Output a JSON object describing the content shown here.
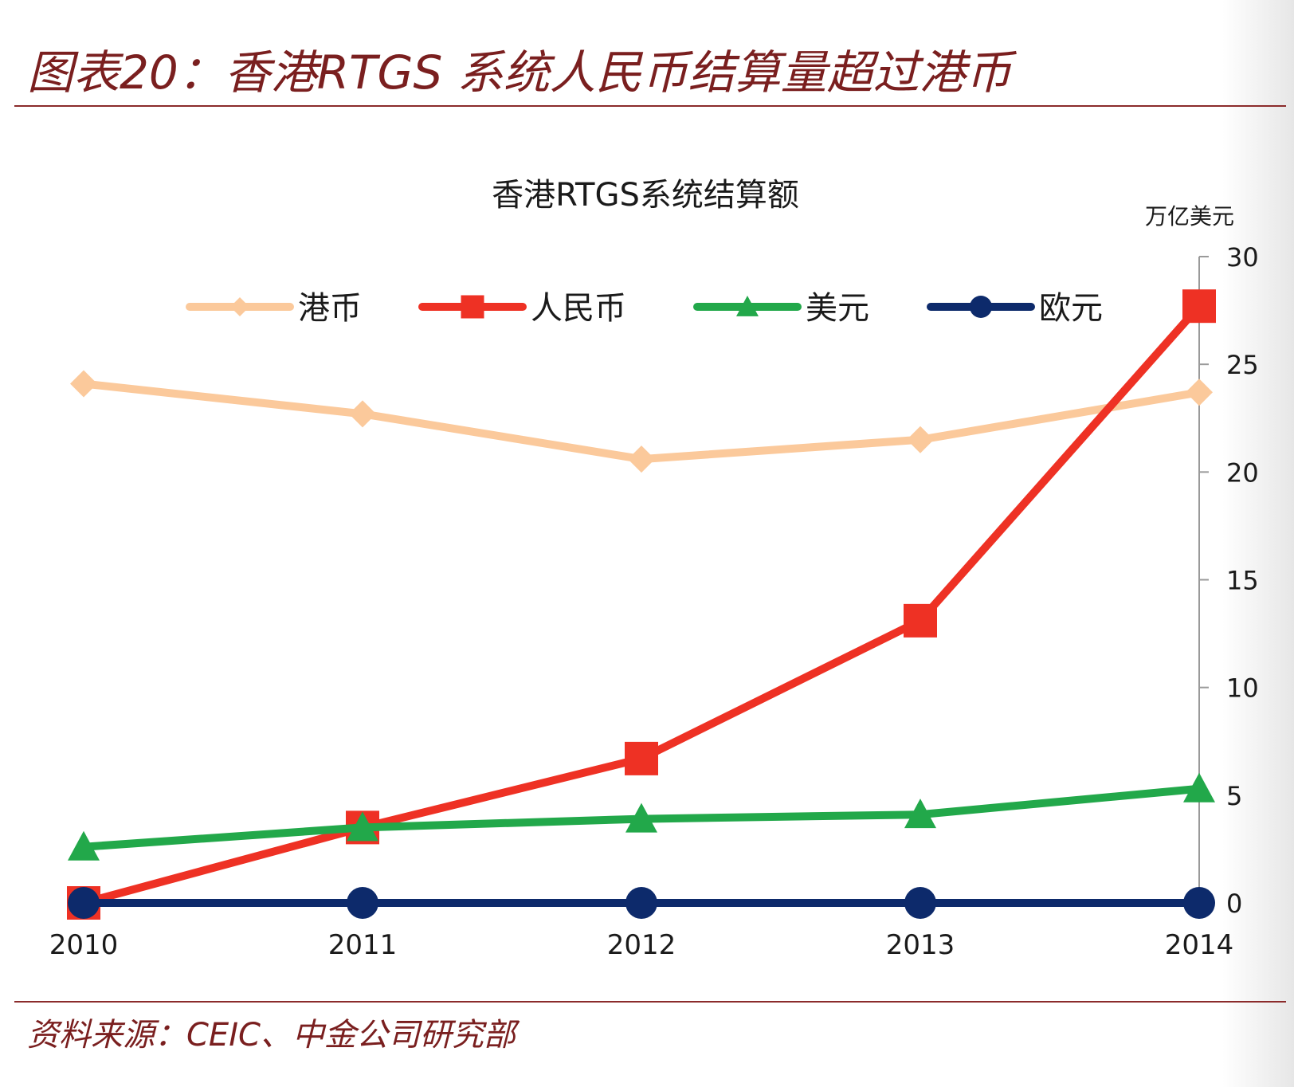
{
  "figure": {
    "title": "图表20：香港RTGS 系统人民币结算量超过港币",
    "source": "资料来源：CEIC、中金公司研究部"
  },
  "chart_data": {
    "type": "line",
    "title": "香港RTGS系统结算额",
    "ylabel": "万亿美元",
    "y_axis_position": "right",
    "ylim": [
      0,
      30
    ],
    "yticks": [
      0,
      5,
      10,
      15,
      20,
      25,
      30
    ],
    "categories": [
      "2010",
      "2011",
      "2012",
      "2013",
      "2014"
    ],
    "grid": false,
    "legend_position": "top",
    "series": [
      {
        "name": "港币",
        "color": "#fbc99b",
        "marker": "diamond",
        "values": [
          24.1,
          22.7,
          20.6,
          21.5,
          23.7
        ]
      },
      {
        "name": "人民币",
        "color": "#ee3124",
        "marker": "square",
        "values": [
          0.0,
          3.5,
          6.7,
          13.1,
          27.7
        ]
      },
      {
        "name": "美元",
        "color": "#22a84a",
        "marker": "triangle",
        "values": [
          2.6,
          3.5,
          3.9,
          4.1,
          5.3
        ]
      },
      {
        "name": "欧元",
        "color": "#0d2a6b",
        "marker": "circle",
        "values": [
          0.0,
          0.0,
          0.0,
          0.0,
          0.0
        ]
      }
    ]
  }
}
